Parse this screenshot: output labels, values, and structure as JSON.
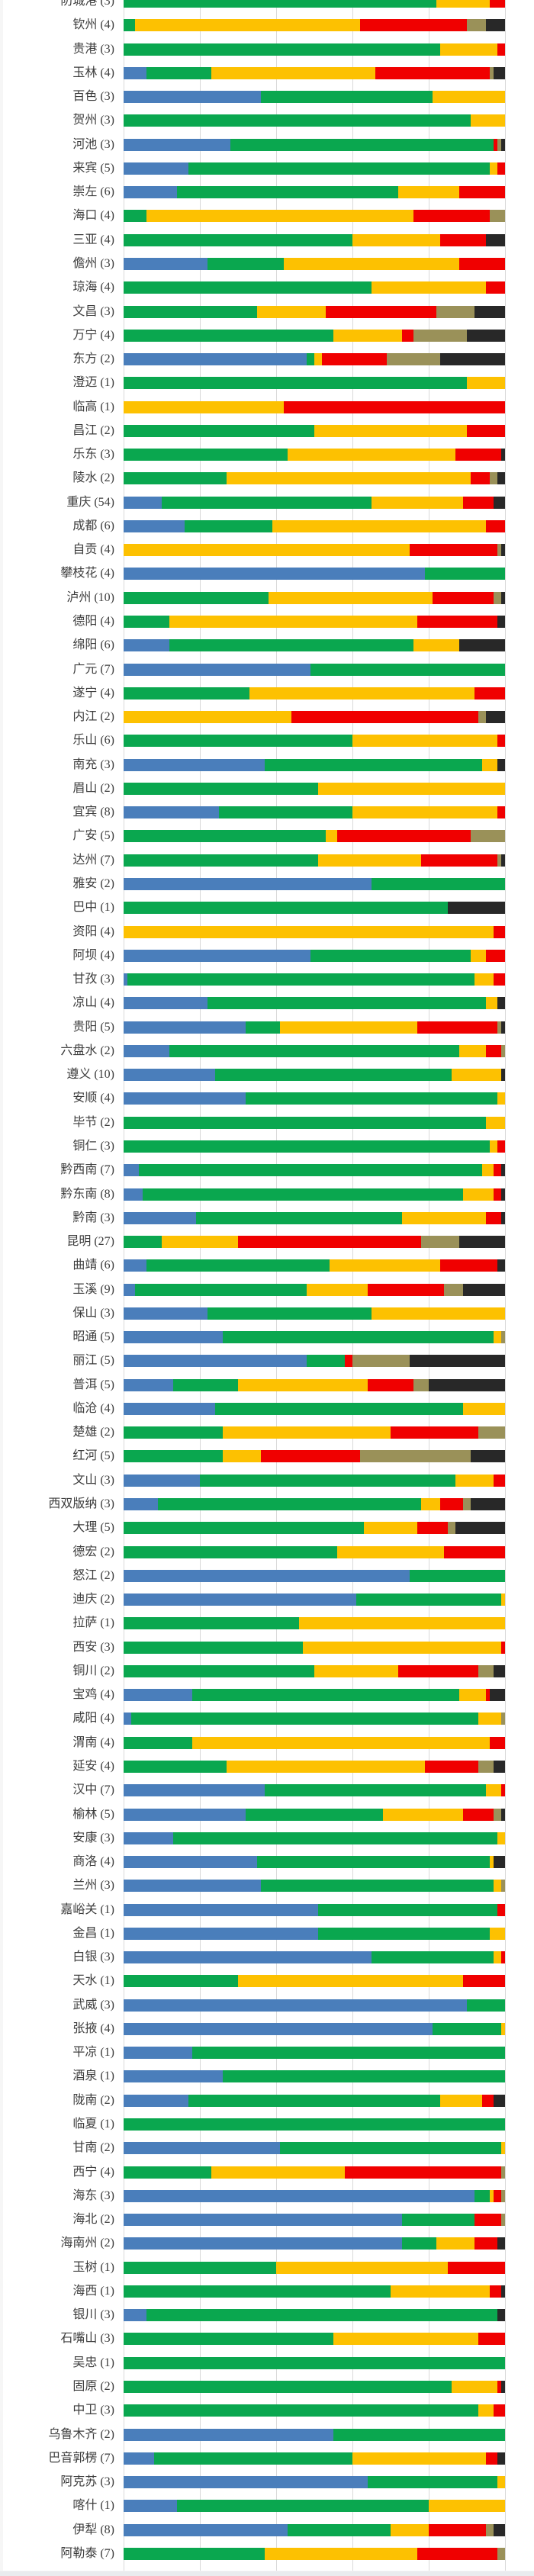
{
  "chart_data": {
    "type": "bar",
    "orientation": "horizontal",
    "stacked": true,
    "value_unit": "percent_of_row_total",
    "title": "",
    "xlabel": "",
    "ylabel": "",
    "axis": {
      "min": 0,
      "max": 100,
      "gridline_step": 20,
      "grid": true
    },
    "legend_position": "none-visible",
    "series_keys": [
      "blue",
      "green",
      "yellow",
      "red",
      "khaki",
      "black"
    ],
    "series_colors": {
      "blue": "#4a7ebb",
      "green": "#0aa74f",
      "yellow": "#fdc101",
      "red": "#f00000",
      "khaki": "#9a9159",
      "black": "#282828"
    },
    "label_format": "{name} ({count})",
    "rows": [
      {
        "label": "防城港",
        "count": 3,
        "values": [
          0,
          82,
          14,
          4,
          0,
          0
        ]
      },
      {
        "label": "钦州",
        "count": 4,
        "values": [
          0,
          3,
          59,
          28,
          5,
          5
        ]
      },
      {
        "label": "贵港",
        "count": 3,
        "values": [
          0,
          83,
          15,
          2,
          0,
          0
        ]
      },
      {
        "label": "玉林",
        "count": 4,
        "values": [
          6,
          17,
          43,
          30,
          1,
          3
        ]
      },
      {
        "label": "百色",
        "count": 3,
        "values": [
          36,
          45,
          19,
          0,
          0,
          0
        ]
      },
      {
        "label": "贺州",
        "count": 3,
        "values": [
          0,
          91,
          9,
          0,
          0,
          0
        ]
      },
      {
        "label": "河池",
        "count": 3,
        "values": [
          28,
          69,
          0,
          1,
          1,
          1
        ]
      },
      {
        "label": "来宾",
        "count": 5,
        "values": [
          17,
          79,
          2,
          2,
          0,
          0
        ]
      },
      {
        "label": "崇左",
        "count": 6,
        "values": [
          14,
          58,
          16,
          12,
          0,
          0
        ]
      },
      {
        "label": "海口",
        "count": 4,
        "values": [
          0,
          6,
          70,
          20,
          4,
          0
        ]
      },
      {
        "label": "三亚",
        "count": 4,
        "values": [
          0,
          60,
          23,
          12,
          0,
          5
        ]
      },
      {
        "label": "儋州",
        "count": 3,
        "values": [
          22,
          20,
          46,
          12,
          0,
          0
        ]
      },
      {
        "label": "琼海",
        "count": 4,
        "values": [
          0,
          65,
          30,
          5,
          0,
          0
        ]
      },
      {
        "label": "文昌",
        "count": 3,
        "values": [
          0,
          35,
          18,
          29,
          10,
          8
        ]
      },
      {
        "label": "万宁",
        "count": 4,
        "values": [
          0,
          55,
          18,
          3,
          14,
          10
        ]
      },
      {
        "label": "东方",
        "count": 2,
        "values": [
          48,
          2,
          2,
          17,
          14,
          17
        ]
      },
      {
        "label": "澄迈",
        "count": 1,
        "values": [
          0,
          90,
          10,
          0,
          0,
          0
        ]
      },
      {
        "label": "临高",
        "count": 1,
        "values": [
          0,
          0,
          42,
          58,
          0,
          0
        ]
      },
      {
        "label": "昌江",
        "count": 2,
        "values": [
          0,
          50,
          40,
          10,
          0,
          0
        ]
      },
      {
        "label": "乐东",
        "count": 3,
        "values": [
          0,
          43,
          44,
          12,
          0,
          1
        ]
      },
      {
        "label": "陵水",
        "count": 2,
        "values": [
          0,
          27,
          64,
          5,
          2,
          2
        ]
      },
      {
        "label": "重庆",
        "count": 54,
        "values": [
          10,
          55,
          24,
          8,
          0,
          3
        ]
      },
      {
        "label": "成都",
        "count": 6,
        "values": [
          16,
          23,
          56,
          5,
          0,
          0
        ]
      },
      {
        "label": "自贡",
        "count": 4,
        "values": [
          0,
          0,
          75,
          23,
          1,
          1
        ]
      },
      {
        "label": "攀枝花",
        "count": 4,
        "values": [
          79,
          21,
          0,
          0,
          0,
          0
        ]
      },
      {
        "label": "泸州",
        "count": 10,
        "values": [
          0,
          38,
          43,
          16,
          2,
          1
        ]
      },
      {
        "label": "德阳",
        "count": 4,
        "values": [
          0,
          12,
          65,
          21,
          0,
          2
        ]
      },
      {
        "label": "绵阳",
        "count": 6,
        "values": [
          12,
          64,
          12,
          0,
          0,
          12
        ]
      },
      {
        "label": "广元",
        "count": 7,
        "values": [
          49,
          51,
          0,
          0,
          0,
          0
        ]
      },
      {
        "label": "遂宁",
        "count": 4,
        "values": [
          0,
          33,
          59,
          8,
          0,
          0
        ]
      },
      {
        "label": "内江",
        "count": 2,
        "values": [
          0,
          0,
          44,
          49,
          2,
          5
        ]
      },
      {
        "label": "乐山",
        "count": 6,
        "values": [
          0,
          60,
          38,
          2,
          0,
          0
        ]
      },
      {
        "label": "南充",
        "count": 3,
        "values": [
          37,
          57,
          4,
          0,
          0,
          2
        ]
      },
      {
        "label": "眉山",
        "count": 2,
        "values": [
          0,
          51,
          49,
          0,
          0,
          0
        ]
      },
      {
        "label": "宜宾",
        "count": 8,
        "values": [
          25,
          35,
          38,
          2,
          0,
          0
        ]
      },
      {
        "label": "广安",
        "count": 5,
        "values": [
          0,
          53,
          3,
          35,
          9,
          0
        ]
      },
      {
        "label": "达州",
        "count": 7,
        "values": [
          0,
          51,
          27,
          20,
          1,
          1
        ]
      },
      {
        "label": "雅安",
        "count": 2,
        "values": [
          65,
          35,
          0,
          0,
          0,
          0
        ]
      },
      {
        "label": "巴中",
        "count": 1,
        "values": [
          0,
          85,
          0,
          0,
          0,
          15
        ]
      },
      {
        "label": "资阳",
        "count": 4,
        "values": [
          0,
          0,
          97,
          3,
          0,
          0
        ]
      },
      {
        "label": "阿坝",
        "count": 4,
        "values": [
          49,
          42,
          4,
          5,
          0,
          0
        ]
      },
      {
        "label": "甘孜",
        "count": 3,
        "values": [
          1,
          91,
          5,
          3,
          0,
          0
        ]
      },
      {
        "label": "凉山",
        "count": 4,
        "values": [
          22,
          73,
          3,
          0,
          0,
          2
        ]
      },
      {
        "label": "贵阳",
        "count": 5,
        "values": [
          32,
          9,
          36,
          21,
          1,
          1
        ]
      },
      {
        "label": "六盘水",
        "count": 2,
        "values": [
          12,
          76,
          7,
          4,
          1,
          0
        ]
      },
      {
        "label": "遵义",
        "count": 10,
        "values": [
          24,
          62,
          13,
          0,
          0,
          1
        ]
      },
      {
        "label": "安顺",
        "count": 4,
        "values": [
          32,
          66,
          2,
          0,
          0,
          0
        ]
      },
      {
        "label": "毕节",
        "count": 2,
        "values": [
          0,
          95,
          5,
          0,
          0,
          0
        ]
      },
      {
        "label": "铜仁",
        "count": 3,
        "values": [
          0,
          96,
          2,
          2,
          0,
          0
        ]
      },
      {
        "label": "黔西南",
        "count": 7,
        "values": [
          4,
          90,
          3,
          2,
          0,
          1
        ]
      },
      {
        "label": "黔东南",
        "count": 8,
        "values": [
          5,
          84,
          8,
          2,
          0,
          1
        ]
      },
      {
        "label": "黔南",
        "count": 3,
        "values": [
          19,
          54,
          22,
          4,
          0,
          1
        ]
      },
      {
        "label": "昆明",
        "count": 27,
        "values": [
          0,
          10,
          20,
          48,
          10,
          12
        ]
      },
      {
        "label": "曲靖",
        "count": 6,
        "values": [
          6,
          48,
          29,
          15,
          0,
          2
        ]
      },
      {
        "label": "玉溪",
        "count": 9,
        "values": [
          3,
          45,
          16,
          20,
          5,
          11
        ]
      },
      {
        "label": "保山",
        "count": 3,
        "values": [
          22,
          43,
          35,
          0,
          0,
          0
        ]
      },
      {
        "label": "昭通",
        "count": 5,
        "values": [
          26,
          71,
          2,
          0,
          1,
          0
        ]
      },
      {
        "label": "丽江",
        "count": 5,
        "values": [
          48,
          10,
          0,
          2,
          15,
          25
        ]
      },
      {
        "label": "普洱",
        "count": 5,
        "values": [
          13,
          17,
          34,
          12,
          4,
          20
        ]
      },
      {
        "label": "临沧",
        "count": 4,
        "values": [
          24,
          65,
          11,
          0,
          0,
          0
        ]
      },
      {
        "label": "楚雄",
        "count": 2,
        "values": [
          0,
          26,
          44,
          23,
          7,
          0
        ]
      },
      {
        "label": "红河",
        "count": 5,
        "values": [
          0,
          26,
          10,
          26,
          29,
          9
        ]
      },
      {
        "label": "文山",
        "count": 3,
        "values": [
          20,
          67,
          10,
          3,
          0,
          0
        ]
      },
      {
        "label": "西双版纳",
        "count": 3,
        "values": [
          9,
          69,
          5,
          6,
          2,
          9
        ]
      },
      {
        "label": "大理",
        "count": 5,
        "values": [
          0,
          63,
          14,
          8,
          2,
          13
        ]
      },
      {
        "label": "德宏",
        "count": 2,
        "values": [
          0,
          56,
          28,
          16,
          0,
          0
        ]
      },
      {
        "label": "怒江",
        "count": 2,
        "values": [
          75,
          25,
          0,
          0,
          0,
          0
        ]
      },
      {
        "label": "迪庆",
        "count": 2,
        "values": [
          61,
          38,
          1,
          0,
          0,
          0
        ]
      },
      {
        "label": "拉萨",
        "count": 1,
        "values": [
          0,
          46,
          54,
          0,
          0,
          0
        ]
      },
      {
        "label": "西安",
        "count": 3,
        "values": [
          0,
          47,
          52,
          1,
          0,
          0
        ]
      },
      {
        "label": "铜川",
        "count": 2,
        "values": [
          0,
          50,
          22,
          21,
          4,
          3
        ]
      },
      {
        "label": "宝鸡",
        "count": 4,
        "values": [
          18,
          70,
          7,
          1,
          0,
          4
        ]
      },
      {
        "label": "咸阳",
        "count": 4,
        "values": [
          2,
          91,
          6,
          0,
          1,
          0
        ]
      },
      {
        "label": "渭南",
        "count": 4,
        "values": [
          0,
          18,
          78,
          4,
          0,
          0
        ]
      },
      {
        "label": "延安",
        "count": 4,
        "values": [
          0,
          27,
          52,
          14,
          4,
          3
        ]
      },
      {
        "label": "汉中",
        "count": 7,
        "values": [
          37,
          58,
          4,
          1,
          0,
          0
        ]
      },
      {
        "label": "榆林",
        "count": 5,
        "values": [
          32,
          36,
          21,
          8,
          2,
          1
        ]
      },
      {
        "label": "安康",
        "count": 3,
        "values": [
          13,
          85,
          2,
          0,
          0,
          0
        ]
      },
      {
        "label": "商洛",
        "count": 4,
        "values": [
          35,
          61,
          1,
          0,
          0,
          3
        ]
      },
      {
        "label": "兰州",
        "count": 3,
        "values": [
          36,
          61,
          2,
          0,
          1,
          0
        ]
      },
      {
        "label": "嘉峪关",
        "count": 1,
        "values": [
          51,
          47,
          0,
          2,
          0,
          0
        ]
      },
      {
        "label": "金昌",
        "count": 1,
        "values": [
          51,
          45,
          4,
          0,
          0,
          0
        ]
      },
      {
        "label": "白银",
        "count": 3,
        "values": [
          65,
          32,
          2,
          1,
          0,
          0
        ]
      },
      {
        "label": "天水",
        "count": 1,
        "values": [
          0,
          30,
          59,
          11,
          0,
          0
        ]
      },
      {
        "label": "武威",
        "count": 3,
        "values": [
          90,
          10,
          0,
          0,
          0,
          0
        ]
      },
      {
        "label": "张掖",
        "count": 4,
        "values": [
          81,
          18,
          1,
          0,
          0,
          0
        ]
      },
      {
        "label": "平凉",
        "count": 1,
        "values": [
          18,
          82,
          0,
          0,
          0,
          0
        ]
      },
      {
        "label": "酒泉",
        "count": 1,
        "values": [
          26,
          74,
          0,
          0,
          0,
          0
        ]
      },
      {
        "label": "陇南",
        "count": 2,
        "values": [
          17,
          66,
          11,
          3,
          0,
          3
        ]
      },
      {
        "label": "临夏",
        "count": 1,
        "values": [
          0,
          100,
          0,
          0,
          0,
          0
        ]
      },
      {
        "label": "甘南",
        "count": 2,
        "values": [
          41,
          58,
          1,
          0,
          0,
          0
        ]
      },
      {
        "label": "西宁",
        "count": 4,
        "values": [
          0,
          23,
          35,
          41,
          1,
          0
        ]
      },
      {
        "label": "海东",
        "count": 3,
        "values": [
          92,
          4,
          1,
          2,
          1,
          0
        ]
      },
      {
        "label": "海北",
        "count": 2,
        "values": [
          73,
          19,
          0,
          7,
          1,
          0
        ]
      },
      {
        "label": "海南州",
        "count": 2,
        "values": [
          73,
          9,
          10,
          6,
          0,
          2
        ]
      },
      {
        "label": "玉树",
        "count": 1,
        "values": [
          0,
          40,
          45,
          15,
          0,
          0
        ]
      },
      {
        "label": "海西",
        "count": 1,
        "values": [
          0,
          70,
          26,
          3,
          0,
          1
        ]
      },
      {
        "label": "银川",
        "count": 3,
        "values": [
          6,
          92,
          0,
          0,
          0,
          2
        ]
      },
      {
        "label": "石嘴山",
        "count": 3,
        "values": [
          0,
          55,
          38,
          7,
          0,
          0
        ]
      },
      {
        "label": "吴忠",
        "count": 1,
        "values": [
          0,
          100,
          0,
          0,
          0,
          0
        ]
      },
      {
        "label": "固原",
        "count": 2,
        "values": [
          0,
          86,
          12,
          1,
          0,
          1
        ]
      },
      {
        "label": "中卫",
        "count": 3,
        "values": [
          0,
          93,
          4,
          3,
          0,
          0
        ]
      },
      {
        "label": "乌鲁木齐",
        "count": 2,
        "values": [
          55,
          45,
          0,
          0,
          0,
          0
        ]
      },
      {
        "label": "巴音郭楞",
        "count": 7,
        "values": [
          8,
          52,
          35,
          3,
          0,
          2
        ]
      },
      {
        "label": "阿克苏",
        "count": 3,
        "values": [
          64,
          34,
          2,
          0,
          0,
          0
        ]
      },
      {
        "label": "喀什",
        "count": 1,
        "values": [
          14,
          66,
          20,
          0,
          0,
          0
        ]
      },
      {
        "label": "伊犁",
        "count": 8,
        "values": [
          43,
          27,
          10,
          15,
          2,
          3
        ]
      },
      {
        "label": "阿勒泰",
        "count": 7,
        "values": [
          0,
          37,
          40,
          21,
          2,
          0
        ]
      }
    ]
  }
}
